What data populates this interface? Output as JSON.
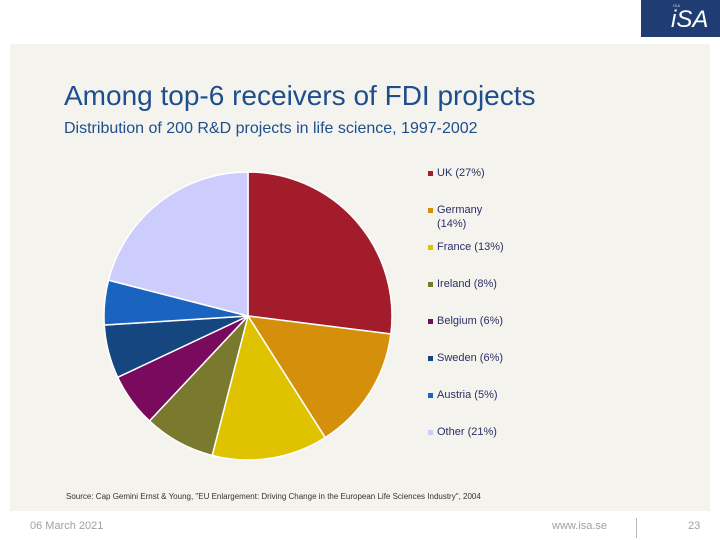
{
  "logo": {
    "small": "ISA",
    "text": "iSA"
  },
  "header": {
    "title": "Among top-6 receivers of FDI projects",
    "subtitle": "Distribution of 200 R&D projects in life science, 1997-2002"
  },
  "chart_data": {
    "type": "pie",
    "title": "Among top-6 receivers of FDI projects",
    "subtitle": "Distribution of 200 R&D projects in life science, 1997-2002",
    "categories": [
      "UK",
      "Germany",
      "France",
      "Ireland",
      "Belgium",
      "Sweden",
      "Austria",
      "Other"
    ],
    "values": [
      27,
      14,
      13,
      8,
      6,
      6,
      5,
      21
    ],
    "unit": "%",
    "colors": [
      "#a21c2c",
      "#d4900a",
      "#e0c300",
      "#7a7a2e",
      "#7a0a5e",
      "#16467f",
      "#1a64c0",
      "#cccdfc"
    ],
    "legend": [
      {
        "label": "UK (27%)"
      },
      {
        "label": "Germany (14%)"
      },
      {
        "label": "France (13%)"
      },
      {
        "label": "Ireland (8%)"
      },
      {
        "label": "Belgium (6%)"
      },
      {
        "label": "Sweden (6%)"
      },
      {
        "label": "Austria (5%)"
      },
      {
        "label": "Other (21%)"
      }
    ],
    "legend_position": "right"
  },
  "source": "Source: Cap Gemini Ernst & Young, \"EU Enlargement: Driving Change in the European Life Sciences Industry\", 2004",
  "footer": {
    "date": "06 March 2021",
    "url": "www.isa.se",
    "page": "23"
  }
}
